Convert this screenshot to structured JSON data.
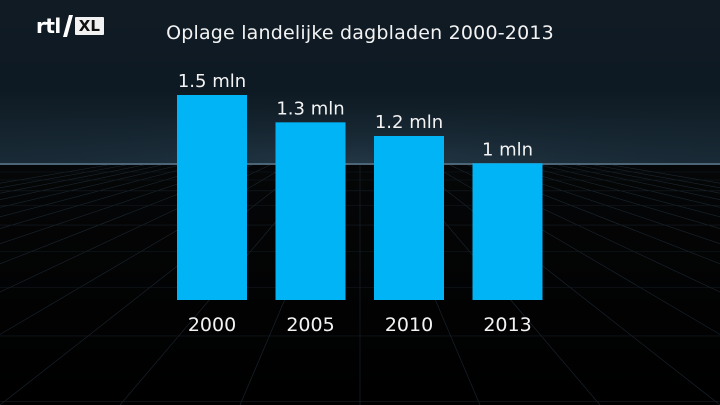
{
  "logo": {
    "brand": "rtl",
    "suffix": "XL"
  },
  "colors": {
    "bar": "#00b4f5",
    "text": "#f3f3f3",
    "background_top": "#0c1620",
    "background_bottom": "#000000"
  },
  "chart_data": {
    "type": "bar",
    "title": "Oplage landelijke dagbladen 2000-2013",
    "xlabel": "",
    "ylabel": "",
    "categories": [
      "2000",
      "2005",
      "2010",
      "2013"
    ],
    "values": [
      1.5,
      1.3,
      1.2,
      1.0
    ],
    "value_labels": [
      "1.5 mln",
      "1.3 mln",
      "1.2 mln",
      "1 mln"
    ],
    "unit": "mln",
    "ylim": [
      0,
      1.5
    ],
    "grid": false,
    "legend": "none"
  }
}
